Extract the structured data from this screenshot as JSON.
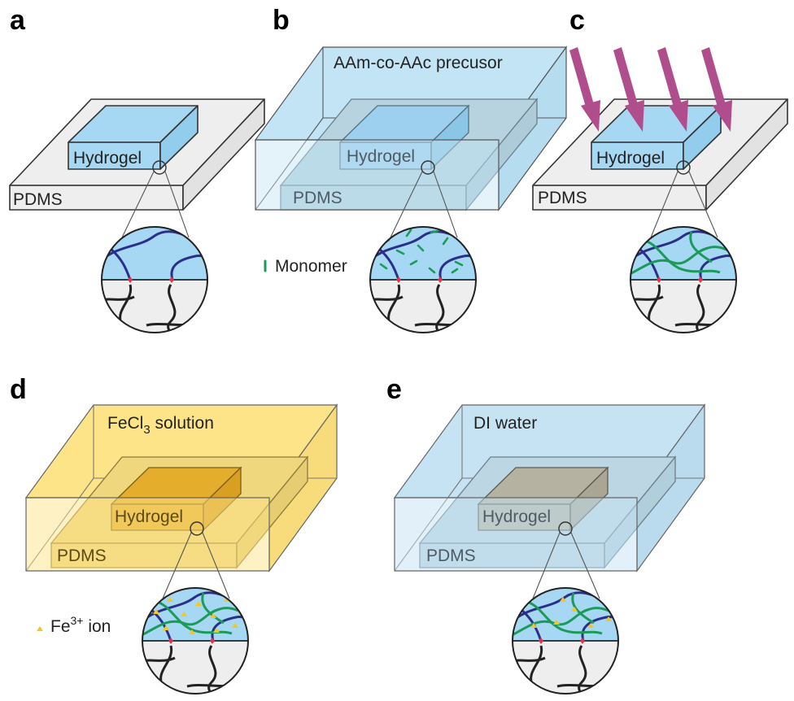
{
  "panels": {
    "a": {
      "letter": "a",
      "hydrogel": "Hydrogel",
      "pdms": "PDMS"
    },
    "b": {
      "letter": "b",
      "solution": "AAm-co-AAc precusor",
      "hydrogel": "Hydrogel",
      "pdms": "PDMS",
      "legend": "Monomer"
    },
    "c": {
      "letter": "c",
      "hydrogel": "Hydrogel",
      "pdms": "PDMS"
    },
    "d": {
      "letter": "d",
      "solution_main": "FeCl",
      "solution_sub": "3",
      "solution_rest": " solution",
      "hydrogel": "Hydrogel",
      "pdms": "PDMS",
      "legend_main": "Fe",
      "legend_sup": "3+",
      "legend_rest": " ion"
    },
    "e": {
      "letter": "e",
      "solution": "DI water",
      "hydrogel": "Hydrogel",
      "pdms": "PDMS"
    }
  },
  "colors": {
    "pdms": "#eeeeee",
    "hydrogel": "#a7d8f3",
    "precursor": "#c3e4f4",
    "fecl3": "#fde488",
    "water": "#c6e3f3",
    "arrow": "#b04d8c",
    "monomer": "#1b9a5a",
    "polymer": "#2a2f8c",
    "bond": "#e0364a",
    "ion": "#f5c71d"
  }
}
